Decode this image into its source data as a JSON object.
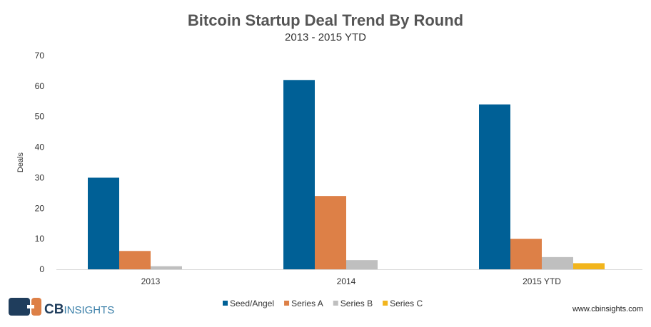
{
  "chart_data": {
    "type": "bar",
    "title": "Bitcoin Startup Deal Trend By Round",
    "subtitle": "2013 - 2015 YTD",
    "xlabel": "",
    "ylabel": "Deals",
    "ylim": [
      0,
      70
    ],
    "yticks": [
      "0",
      "10",
      "20",
      "30",
      "40",
      "50",
      "60",
      "70"
    ],
    "grid": false,
    "legend_position": "bottom",
    "categories": [
      "2013",
      "2014",
      "2015 YTD"
    ],
    "series": [
      {
        "name": "Seed/Angel",
        "color": "#006096",
        "values": [
          30,
          62,
          54
        ]
      },
      {
        "name": "Series A",
        "color": "#dd8047",
        "values": [
          6,
          24,
          10
        ]
      },
      {
        "name": "Series B",
        "color": "#bfbfbf",
        "values": [
          1,
          3,
          4
        ]
      },
      {
        "name": "Series C",
        "color": "#f2b51d",
        "values": [
          0,
          0,
          2
        ]
      }
    ]
  },
  "footer": {
    "logo_text": "CB INSIGHTS",
    "website": "www.cbinsights.com"
  }
}
